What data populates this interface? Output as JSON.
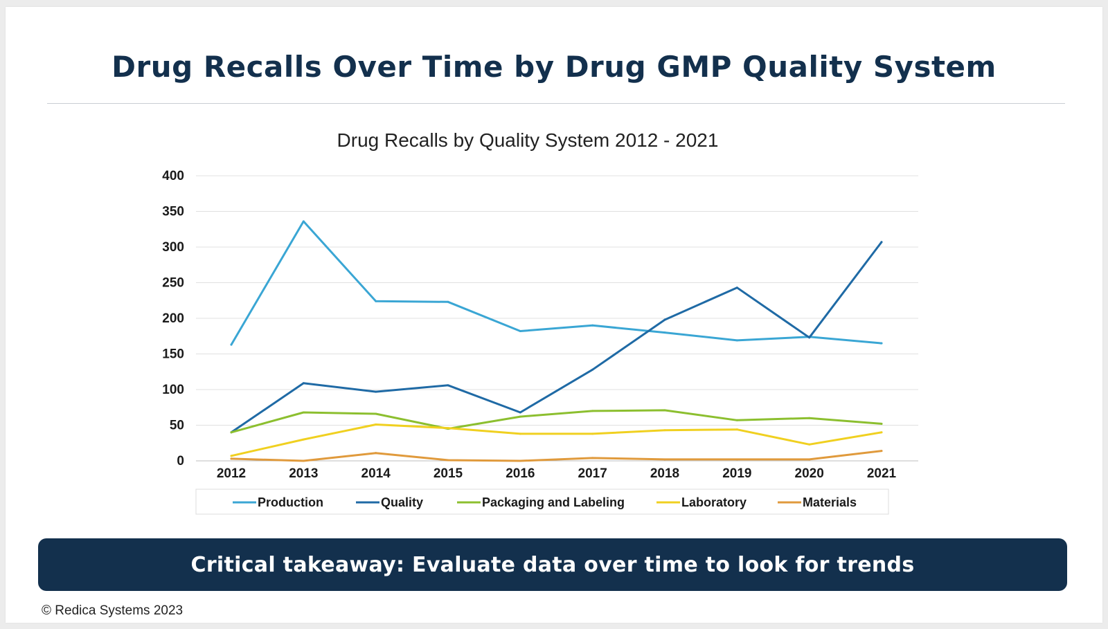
{
  "slide": {
    "title": "Drug Recalls Over Time by Drug GMP Quality System",
    "takeaway": "Critical takeaway: Evaluate data over time to look for trends",
    "copyright": "© Redica Systems 2023"
  },
  "chart_data": {
    "type": "line",
    "title": "Drug Recalls by Quality System 2012 - 2021",
    "xlabel": "",
    "ylabel": "",
    "ylim": [
      0,
      400
    ],
    "yticks": [
      0,
      50,
      100,
      150,
      200,
      250,
      300,
      350,
      400
    ],
    "grid": true,
    "legend_position": "bottom",
    "categories": [
      "2012",
      "2013",
      "2014",
      "2015",
      "2016",
      "2017",
      "2018",
      "2019",
      "2020",
      "2021"
    ],
    "series": [
      {
        "name": "Production",
        "color": "#3aa6d4",
        "values": [
          163,
          336,
          224,
          223,
          182,
          190,
          180,
          169,
          174,
          165
        ]
      },
      {
        "name": "Quality",
        "color": "#1f6aa5",
        "values": [
          40,
          109,
          97,
          106,
          68,
          128,
          198,
          243,
          173,
          307
        ]
      },
      {
        "name": "Packaging and Labeling",
        "color": "#8cbf2f",
        "values": [
          40,
          68,
          66,
          45,
          62,
          70,
          71,
          57,
          60,
          52
        ]
      },
      {
        "name": "Laboratory",
        "color": "#f0d020",
        "values": [
          7,
          30,
          51,
          46,
          38,
          38,
          43,
          44,
          23,
          40
        ]
      },
      {
        "name": "Materials",
        "color": "#e09a3c",
        "values": [
          3,
          0,
          11,
          1,
          0,
          4,
          2,
          2,
          2,
          14
        ]
      }
    ]
  }
}
